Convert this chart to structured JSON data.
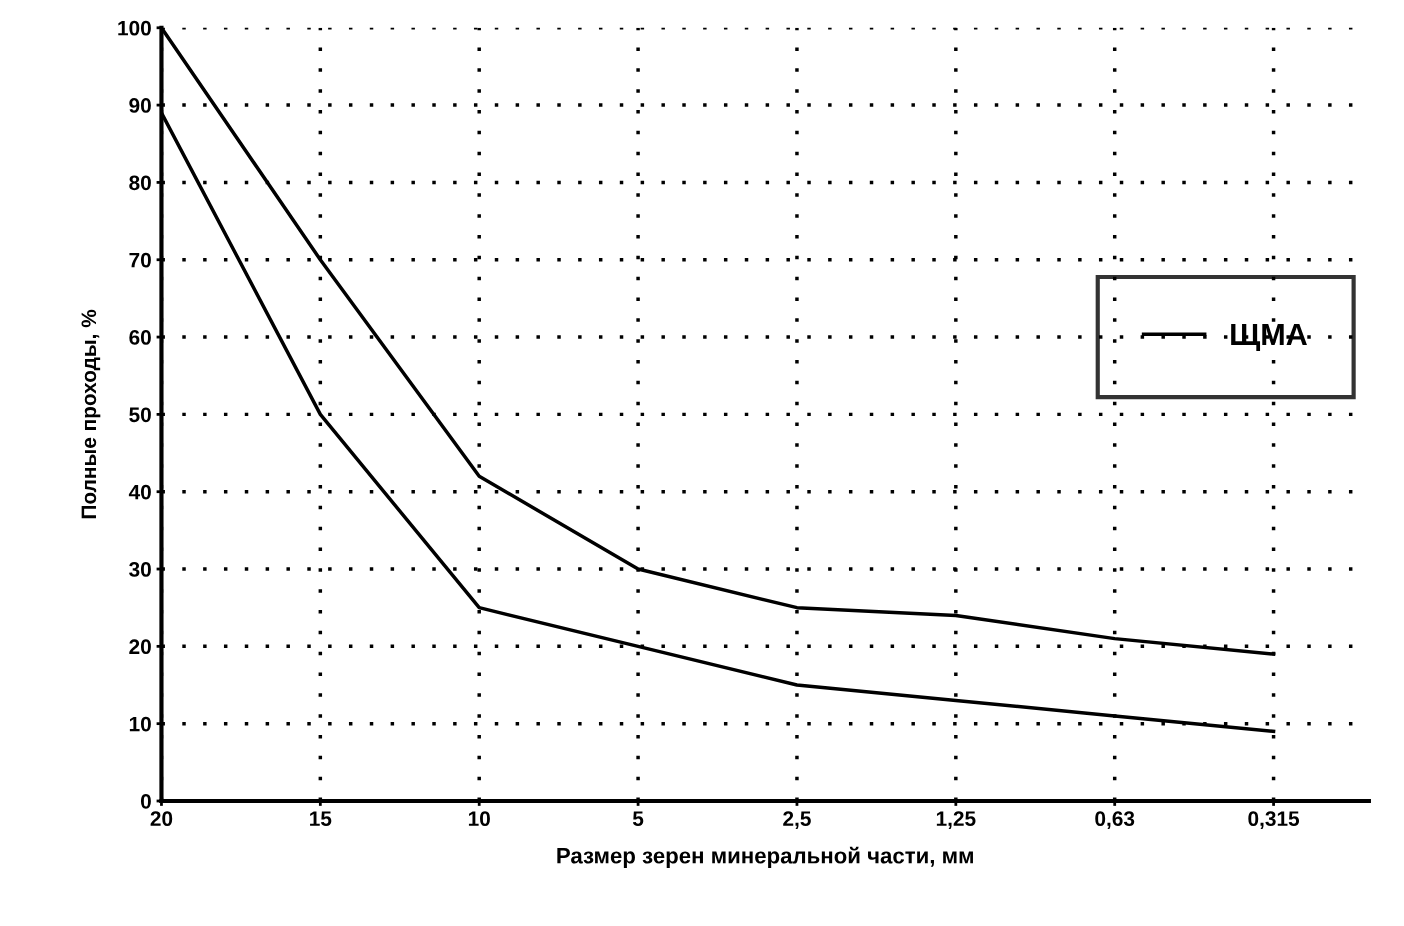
{
  "chart_data": {
    "type": "line",
    "xlabel": "Размер зерен минеральной части, мм",
    "ylabel": "Полные проходы, %",
    "categories": [
      "20",
      "15",
      "10",
      "5",
      "2,5",
      "1,25",
      "0,63",
      "0,315"
    ],
    "series": [
      {
        "name": "ЩМА",
        "color": "#000000",
        "values": [
          100,
          70,
          42,
          30,
          25,
          24,
          21,
          19
        ]
      },
      {
        "color": "#000000",
        "values": [
          89,
          50,
          25,
          20,
          15,
          13,
          11,
          9
        ]
      }
    ],
    "ylim": [
      0,
      100
    ],
    "yticks": [
      0,
      10,
      20,
      30,
      40,
      50,
      60,
      70,
      80,
      90,
      100
    ],
    "grid": true,
    "legend": "right",
    "marker": "none",
    "line_style": "solid"
  }
}
